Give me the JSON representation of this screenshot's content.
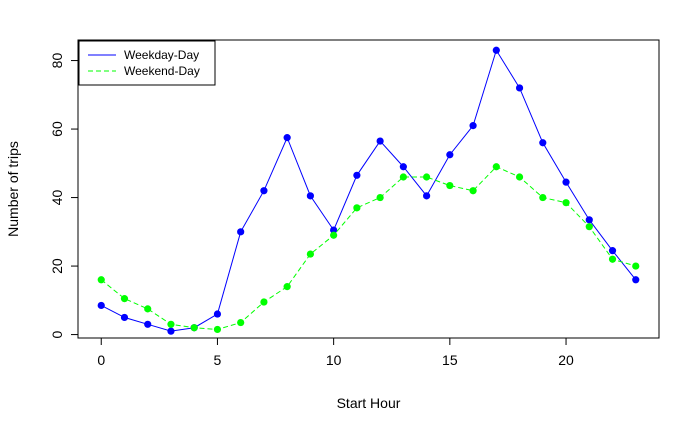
{
  "chart_data": {
    "type": "line",
    "xlabel": "Start Hour",
    "ylabel": "Number of trips",
    "xlim": [
      -1,
      24
    ],
    "ylim": [
      -1,
      86
    ],
    "x_ticks": [
      0,
      5,
      10,
      15,
      20
    ],
    "y_ticks": [
      0,
      20,
      40,
      60,
      80
    ],
    "x_tick_labels": [
      "0",
      "5",
      "10",
      "15",
      "20"
    ],
    "y_tick_labels": [
      "0",
      "20",
      "40",
      "60",
      "80"
    ],
    "grid": false,
    "legend_position": "top-left",
    "x": [
      0,
      1,
      2,
      3,
      4,
      5,
      6,
      7,
      8,
      9,
      10,
      11,
      12,
      13,
      14,
      15,
      16,
      17,
      18,
      19,
      20,
      21,
      22,
      23
    ],
    "series": [
      {
        "name": "Weekday-Day",
        "color": "#0000ff",
        "line_style": "solid",
        "values": [
          8.5,
          5,
          3,
          1,
          2,
          6,
          30,
          42,
          57.5,
          40.5,
          30.5,
          46.5,
          56.5,
          49,
          40.5,
          52.5,
          61,
          83,
          72,
          56,
          44.5,
          33.5,
          24.5,
          16
        ]
      },
      {
        "name": "Weekend-Day",
        "color": "#00ff00",
        "line_style": "dashed",
        "values": [
          16,
          10.5,
          7.5,
          3,
          2,
          1.5,
          3.5,
          9.5,
          14,
          23.5,
          29,
          37,
          40,
          46,
          46,
          43.5,
          42,
          49,
          46,
          40,
          38.5,
          31.5,
          22,
          20
        ]
      }
    ]
  }
}
